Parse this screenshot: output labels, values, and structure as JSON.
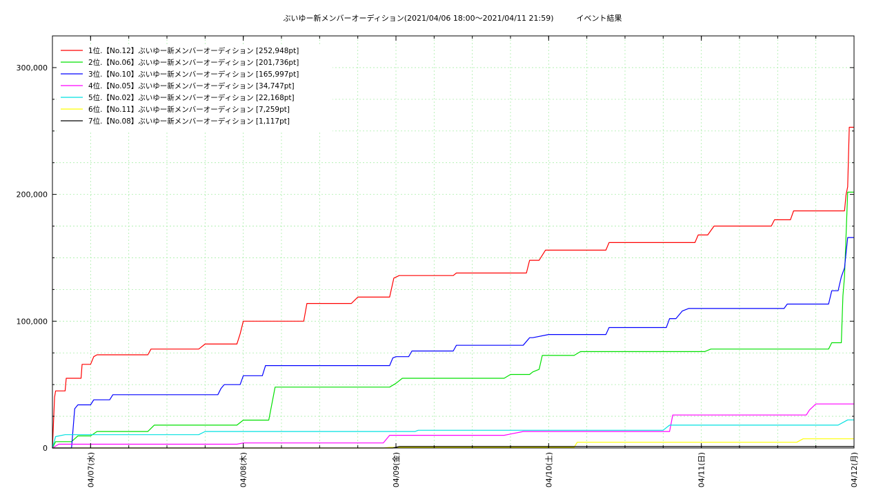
{
  "chart_data": {
    "type": "line",
    "title": "ぶいゆー新メンバーオーディション(2021/04/06 18:00～2021/04/11 21:59)　　　イベント結果",
    "xlabel": "",
    "ylabel": "",
    "x_range": [
      "2021/04/06 18:00",
      "2021/04/12 00:00"
    ],
    "ylim": [
      0,
      325000
    ],
    "yticks": [
      0,
      100000,
      200000,
      300000
    ],
    "ytick_labels": [
      "0",
      "100,000",
      "200,000",
      "300,000"
    ],
    "xticks": [
      "2021/04/07 00:00",
      "2021/04/08 00:00",
      "2021/04/09 00:00",
      "2021/04/10 00:00",
      "2021/04/11 00:00",
      "2021/04/12 00:00"
    ],
    "xtick_labels": [
      "04/07(水)",
      "04/08(木)",
      "04/09(金)",
      "04/10(土)",
      "04/11(日)",
      "04/12(月)"
    ],
    "grid": true,
    "legend_position": "top-left",
    "series": [
      {
        "name": "1位.【No.12】ぶいゆー新メンバーオーディション [252,948pt]",
        "color": "#ff0000",
        "points": [
          [
            "2021/04/06 18:00",
            0
          ],
          [
            "2021/04/06 18:20",
            40000
          ],
          [
            "2021/04/06 18:30",
            45000
          ],
          [
            "2021/04/06 20:00",
            45000
          ],
          [
            "2021/04/06 20:10",
            55000
          ],
          [
            "2021/04/06 22:30",
            55000
          ],
          [
            "2021/04/06 22:40",
            66000
          ],
          [
            "2021/04/07 00:00",
            66000
          ],
          [
            "2021/04/07 00:30",
            72000
          ],
          [
            "2021/04/07 01:00",
            73500
          ],
          [
            "2021/04/07 09:00",
            73500
          ],
          [
            "2021/04/07 09:30",
            78000
          ],
          [
            "2021/04/07 17:00",
            78000
          ],
          [
            "2021/04/07 18:00",
            82000
          ],
          [
            "2021/04/07 23:00",
            82000
          ],
          [
            "2021/04/07 23:30",
            90000
          ],
          [
            "2021/04/08 00:00",
            100000
          ],
          [
            "2021/04/08 09:30",
            100000
          ],
          [
            "2021/04/08 10:00",
            114000
          ],
          [
            "2021/04/08 17:00",
            114000
          ],
          [
            "2021/04/08 18:00",
            119000
          ],
          [
            "2021/04/08 23:00",
            119000
          ],
          [
            "2021/04/08 23:40",
            134000
          ],
          [
            "2021/04/09 00:30",
            136000
          ],
          [
            "2021/04/09 09:00",
            136000
          ],
          [
            "2021/04/09 09:30",
            138000
          ],
          [
            "2021/04/09 20:30",
            138000
          ],
          [
            "2021/04/09 21:00",
            148000
          ],
          [
            "2021/04/09 22:30",
            148000
          ],
          [
            "2021/04/09 23:30",
            156000
          ],
          [
            "2021/04/10 09:00",
            156000
          ],
          [
            "2021/04/10 09:30",
            162000
          ],
          [
            "2021/04/10 23:00",
            162000
          ],
          [
            "2021/04/10 23:30",
            168000
          ],
          [
            "2021/04/11 01:00",
            168000
          ],
          [
            "2021/04/11 02:00",
            175000
          ],
          [
            "2021/04/11 11:00",
            175000
          ],
          [
            "2021/04/11 11:30",
            180000
          ],
          [
            "2021/04/11 14:00",
            180000
          ],
          [
            "2021/04/11 14:30",
            187000
          ],
          [
            "2021/04/11 22:30",
            187000
          ],
          [
            "2021/04/11 22:45",
            200000
          ],
          [
            "2021/04/11 23:00",
            206000
          ],
          [
            "2021/04/11 23:15",
            252948
          ],
          [
            "2021/04/12 00:00",
            252948
          ]
        ]
      },
      {
        "name": "2位.【No.06】ぶいゆー新メンバーオーディション [201,736pt]",
        "color": "#00e000",
        "points": [
          [
            "2021/04/06 18:00",
            0
          ],
          [
            "2021/04/06 18:30",
            5000
          ],
          [
            "2021/04/06 21:00",
            5000
          ],
          [
            "2021/04/06 22:00",
            9500
          ],
          [
            "2021/04/07 00:00",
            9500
          ],
          [
            "2021/04/07 01:00",
            13000
          ],
          [
            "2021/04/07 09:00",
            13000
          ],
          [
            "2021/04/07 10:00",
            18000
          ],
          [
            "2021/04/07 23:00",
            18000
          ],
          [
            "2021/04/08 00:00",
            22000
          ],
          [
            "2021/04/08 04:00",
            22000
          ],
          [
            "2021/04/08 05:00",
            48000
          ],
          [
            "2021/04/08 23:00",
            48000
          ],
          [
            "2021/04/09 00:00",
            51000
          ],
          [
            "2021/04/09 01:00",
            55000
          ],
          [
            "2021/04/09 17:00",
            55000
          ],
          [
            "2021/04/09 18:00",
            58000
          ],
          [
            "2021/04/09 21:00",
            58000
          ],
          [
            "2021/04/09 21:30",
            60000
          ],
          [
            "2021/04/09 22:30",
            62000
          ],
          [
            "2021/04/09 23:00",
            73000
          ],
          [
            "2021/04/10 04:00",
            73000
          ],
          [
            "2021/04/10 05:00",
            76000
          ],
          [
            "2021/04/11 00:30",
            76000
          ],
          [
            "2021/04/11 01:30",
            78000
          ],
          [
            "2021/04/11 20:00",
            78000
          ],
          [
            "2021/04/11 20:30",
            83000
          ],
          [
            "2021/04/11 22:00",
            83000
          ],
          [
            "2021/04/11 22:15",
            120000
          ],
          [
            "2021/04/11 22:30",
            135000
          ],
          [
            "2021/04/11 23:00",
            201736
          ],
          [
            "2021/04/12 00:00",
            201736
          ]
        ]
      },
      {
        "name": "3位.【No.10】ぶいゆー新メンバーオーディション [165,997pt]",
        "color": "#0000ff",
        "points": [
          [
            "2021/04/06 18:00",
            0
          ],
          [
            "2021/04/06 21:00",
            0
          ],
          [
            "2021/04/06 21:30",
            31000
          ],
          [
            "2021/04/06 22:00",
            34000
          ],
          [
            "2021/04/07 00:00",
            34000
          ],
          [
            "2021/04/07 00:30",
            38000
          ],
          [
            "2021/04/07 03:00",
            38000
          ],
          [
            "2021/04/07 03:30",
            42000
          ],
          [
            "2021/04/07 20:00",
            42000
          ],
          [
            "2021/04/07 20:30",
            47000
          ],
          [
            "2021/04/07 21:00",
            50000
          ],
          [
            "2021/04/07 23:30",
            50000
          ],
          [
            "2021/04/08 00:00",
            57000
          ],
          [
            "2021/04/08 03:00",
            57000
          ],
          [
            "2021/04/08 03:30",
            65000
          ],
          [
            "2021/04/08 23:00",
            65000
          ],
          [
            "2021/04/08 23:30",
            71000
          ],
          [
            "2021/04/09 00:00",
            72000
          ],
          [
            "2021/04/09 02:00",
            72000
          ],
          [
            "2021/04/09 02:30",
            76500
          ],
          [
            "2021/04/09 09:00",
            76500
          ],
          [
            "2021/04/09 09:30",
            81000
          ],
          [
            "2021/04/09 20:00",
            81000
          ],
          [
            "2021/04/09 20:30",
            84000
          ],
          [
            "2021/04/09 21:00",
            87000
          ],
          [
            "2021/04/09 21:30",
            87000
          ],
          [
            "2021/04/10 00:00",
            89500
          ],
          [
            "2021/04/10 09:00",
            89500
          ],
          [
            "2021/04/10 09:30",
            95000
          ],
          [
            "2021/04/10 18:30",
            95000
          ],
          [
            "2021/04/10 19:00",
            102000
          ],
          [
            "2021/04/10 20:00",
            102000
          ],
          [
            "2021/04/10 21:00",
            108000
          ],
          [
            "2021/04/10 22:00",
            110000
          ],
          [
            "2021/04/11 13:00",
            110000
          ],
          [
            "2021/04/11 13:30",
            113500
          ],
          [
            "2021/04/11 20:00",
            113500
          ],
          [
            "2021/04/11 20:30",
            124000
          ],
          [
            "2021/04/11 21:30",
            124000
          ],
          [
            "2021/04/11 22:00",
            135000
          ],
          [
            "2021/04/11 22:30",
            142000
          ],
          [
            "2021/04/11 23:00",
            165997
          ],
          [
            "2021/04/12 00:00",
            165997
          ]
        ]
      },
      {
        "name": "4位.【No.05】ぶいゆー新メンバーオーディション [34,747pt]",
        "color": "#ff00ff",
        "points": [
          [
            "2021/04/06 18:00",
            0
          ],
          [
            "2021/04/06 19:00",
            3000
          ],
          [
            "2021/04/07 23:00",
            3000
          ],
          [
            "2021/04/08 00:00",
            4000
          ],
          [
            "2021/04/08 22:00",
            4000
          ],
          [
            "2021/04/08 23:00",
            10000
          ],
          [
            "2021/04/09 17:00",
            10000
          ],
          [
            "2021/04/09 18:00",
            11000
          ],
          [
            "2021/04/09 20:00",
            13000
          ],
          [
            "2021/04/10 19:00",
            13000
          ],
          [
            "2021/04/10 19:30",
            26000
          ],
          [
            "2021/04/11 16:30",
            26000
          ],
          [
            "2021/04/11 17:00",
            30000
          ],
          [
            "2021/04/11 18:00",
            34747
          ],
          [
            "2021/04/12 00:00",
            34747
          ]
        ]
      },
      {
        "name": "5位.【No.02】ぶいゆー新メンバーオーディション [22,168pt]",
        "color": "#00e0e0",
        "points": [
          [
            "2021/04/06 18:00",
            0
          ],
          [
            "2021/04/06 18:30",
            9000
          ],
          [
            "2021/04/06 20:00",
            10500
          ],
          [
            "2021/04/07 17:00",
            10500
          ],
          [
            "2021/04/07 18:00",
            13000
          ],
          [
            "2021/04/09 03:00",
            13000
          ],
          [
            "2021/04/09 03:30",
            14000
          ],
          [
            "2021/04/10 18:00",
            14000
          ],
          [
            "2021/04/10 19:00",
            18000
          ],
          [
            "2021/04/11 21:30",
            18000
          ],
          [
            "2021/04/11 23:00",
            22168
          ],
          [
            "2021/04/12 00:00",
            22168
          ]
        ]
      },
      {
        "name": "6位.【No.11】ぶいゆー新メンバーオーディション [7,259pt]",
        "color": "#ffff00",
        "points": [
          [
            "2021/04/06 18:00",
            0
          ],
          [
            "2021/04/08 22:00",
            0
          ],
          [
            "2021/04/08 23:00",
            500
          ],
          [
            "2021/04/10 04:00",
            500
          ],
          [
            "2021/04/10 04:30",
            4500
          ],
          [
            "2021/04/11 15:00",
            4500
          ],
          [
            "2021/04/11 16:00",
            7259
          ],
          [
            "2021/04/12 00:00",
            7259
          ]
        ]
      },
      {
        "name": "7位.【No.08】ぶいゆー新メンバーオーディション [1,117pt]",
        "color": "#000000",
        "points": [
          [
            "2021/04/06 18:00",
            0
          ],
          [
            "2021/04/08 23:30",
            0
          ],
          [
            "2021/04/09 00:30",
            1117
          ],
          [
            "2021/04/12 00:00",
            1117
          ]
        ]
      }
    ]
  }
}
